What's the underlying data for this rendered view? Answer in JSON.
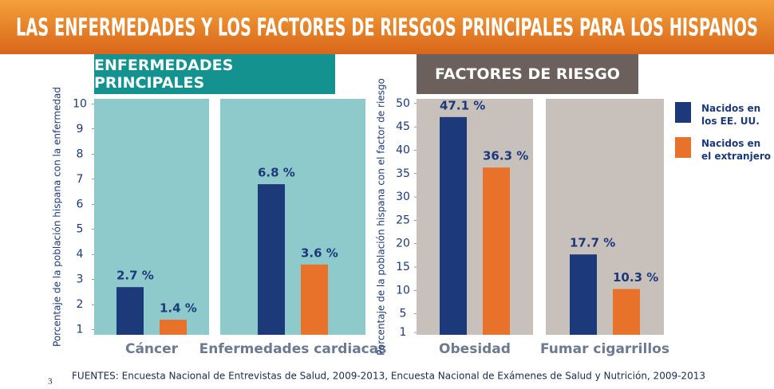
{
  "title": "LAS ENFERMEDADES Y LOS FACTORES DE RIESGOS PRINCIPALES PARA LOS HISPANOS",
  "legend": [
    {
      "name": "Nacidos en los EE. UU.",
      "color": "#1c3a7a"
    },
    {
      "name": "Nacidos en el extranjero",
      "color": "#e8722a"
    }
  ],
  "chart_data": [
    {
      "type": "bar",
      "title": "ENFERMEDADES PRINCIPALES",
      "y_label": "Porcentaje de la población hispana con la enfermedad",
      "categories": [
        "Cáncer",
        "Enfermedades cardiacas"
      ],
      "series": [
        {
          "values": [
            2.7,
            6.8
          ],
          "value_labels": [
            "2.7 %",
            "6.8 %"
          ]
        },
        {
          "values": [
            1.4,
            3.6
          ],
          "value_labels": [
            "1.4 %",
            "3.6 %"
          ]
        }
      ],
      "ylim": [
        0.8,
        10.2
      ],
      "yticks": [
        1,
        2,
        3,
        4,
        5,
        6,
        7,
        8,
        9,
        10
      ]
    },
    {
      "type": "bar",
      "title": "FACTORES DE RIESGO",
      "y_label": "Porcentaje de la población hispana con el factor de riesgo",
      "categories": [
        "Obesidad",
        "Fumar cigarrillos"
      ],
      "series": [
        {
          "values": [
            47.1,
            17.7
          ],
          "value_labels": [
            "47.1 %",
            "17.7 %"
          ]
        },
        {
          "values": [
            36.3,
            10.3
          ],
          "value_labels": [
            "36.3 %",
            "10.3 %"
          ]
        }
      ],
      "ylim": [
        0.5,
        51
      ],
      "yticks": [
        1,
        5,
        10,
        15,
        20,
        25,
        30,
        35,
        40,
        45,
        50
      ]
    }
  ],
  "source": "FUENTES: Encuesta Nacional de Entrevistas de Salud, 2009-2013, Encuesta Nacional de Exámenes de Salud y Nutrición, 2009-2013",
  "page_number": "3"
}
